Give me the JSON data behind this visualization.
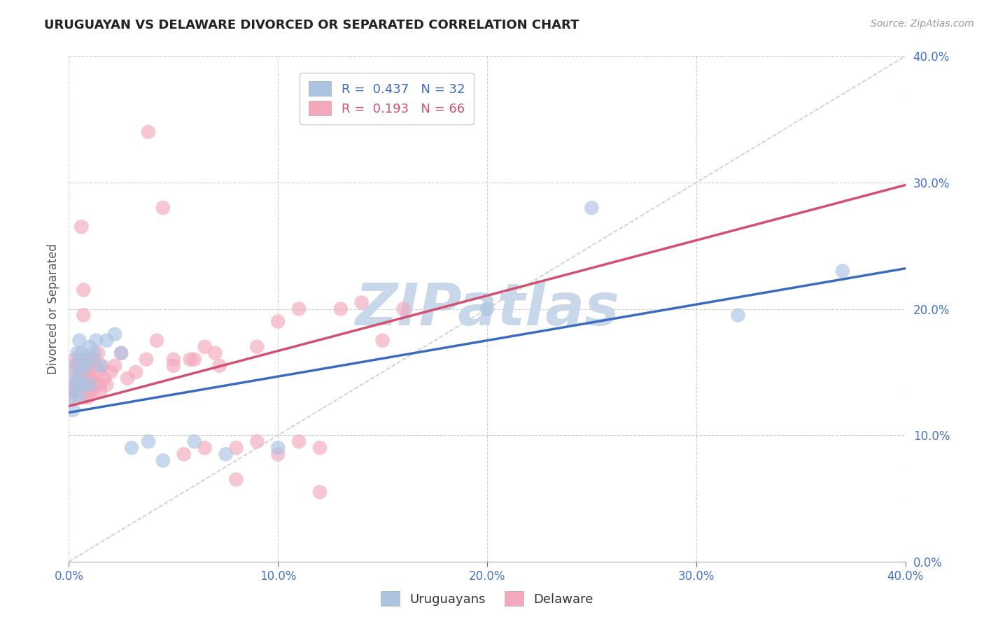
{
  "title": "URUGUAYAN VS DELAWARE DIVORCED OR SEPARATED CORRELATION CHART",
  "source": "Source: ZipAtlas.com",
  "xlabel_blue": "Uruguayans",
  "xlabel_pink": "Delaware",
  "ylabel": "Divorced or Separated",
  "xlim": [
    0.0,
    0.4
  ],
  "ylim": [
    0.0,
    0.4
  ],
  "xticks": [
    0.0,
    0.1,
    0.2,
    0.3,
    0.4
  ],
  "yticks": [
    0.0,
    0.1,
    0.2,
    0.3,
    0.4
  ],
  "blue_R": 0.437,
  "blue_N": 32,
  "pink_R": 0.193,
  "pink_N": 66,
  "blue_color": "#aac4e2",
  "pink_color": "#f4a8bc",
  "blue_line_color": "#3a6bbf",
  "pink_line_color": "#d45070",
  "watermark": "ZIPatlas",
  "watermark_color": "#c8d8ea",
  "grid_color": "#cccccc",
  "background_color": "#ffffff",
  "blue_line_x0": 0.0,
  "blue_line_y0": 0.118,
  "blue_line_x1": 0.4,
  "blue_line_y1": 0.232,
  "pink_line_x0": 0.0,
  "pink_line_y0": 0.123,
  "pink_line_x1": 0.4,
  "pink_line_y1": 0.298,
  "diag_line_x0": 0.0,
  "diag_line_y0": 0.0,
  "diag_line_x1": 0.4,
  "diag_line_y1": 0.4,
  "blue_scatter_x": [
    0.001,
    0.002,
    0.002,
    0.003,
    0.003,
    0.004,
    0.004,
    0.005,
    0.005,
    0.006,
    0.006,
    0.007,
    0.008,
    0.009,
    0.01,
    0.01,
    0.012,
    0.013,
    0.015,
    0.018,
    0.022,
    0.025,
    0.03,
    0.038,
    0.045,
    0.06,
    0.075,
    0.1,
    0.2,
    0.25,
    0.32,
    0.37
  ],
  "blue_scatter_y": [
    0.13,
    0.145,
    0.12,
    0.155,
    0.135,
    0.14,
    0.165,
    0.13,
    0.175,
    0.15,
    0.165,
    0.14,
    0.155,
    0.16,
    0.14,
    0.17,
    0.165,
    0.175,
    0.155,
    0.175,
    0.18,
    0.165,
    0.09,
    0.095,
    0.08,
    0.095,
    0.085,
    0.09,
    0.2,
    0.28,
    0.195,
    0.23
  ],
  "pink_scatter_x": [
    0.001,
    0.002,
    0.002,
    0.003,
    0.003,
    0.004,
    0.004,
    0.005,
    0.005,
    0.006,
    0.006,
    0.007,
    0.007,
    0.007,
    0.008,
    0.008,
    0.008,
    0.009,
    0.009,
    0.01,
    0.01,
    0.01,
    0.011,
    0.011,
    0.012,
    0.012,
    0.013,
    0.014,
    0.014,
    0.015,
    0.015,
    0.016,
    0.017,
    0.018,
    0.02,
    0.022,
    0.025,
    0.028,
    0.032,
    0.037,
    0.042,
    0.05,
    0.058,
    0.065,
    0.072,
    0.08,
    0.09,
    0.1,
    0.11,
    0.12,
    0.13,
    0.14,
    0.15,
    0.16,
    0.05,
    0.055,
    0.06,
    0.065,
    0.07,
    0.08,
    0.09,
    0.1,
    0.11,
    0.12,
    0.038,
    0.045
  ],
  "pink_scatter_y": [
    0.13,
    0.135,
    0.15,
    0.14,
    0.16,
    0.14,
    0.155,
    0.145,
    0.16,
    0.14,
    0.265,
    0.13,
    0.195,
    0.215,
    0.145,
    0.155,
    0.15,
    0.13,
    0.16,
    0.145,
    0.135,
    0.155,
    0.135,
    0.145,
    0.16,
    0.14,
    0.155,
    0.15,
    0.165,
    0.135,
    0.14,
    0.155,
    0.145,
    0.14,
    0.15,
    0.155,
    0.165,
    0.145,
    0.15,
    0.16,
    0.175,
    0.155,
    0.16,
    0.17,
    0.155,
    0.09,
    0.095,
    0.085,
    0.095,
    0.09,
    0.2,
    0.205,
    0.175,
    0.2,
    0.16,
    0.085,
    0.16,
    0.09,
    0.165,
    0.065,
    0.17,
    0.19,
    0.2,
    0.055,
    0.34,
    0.28
  ]
}
